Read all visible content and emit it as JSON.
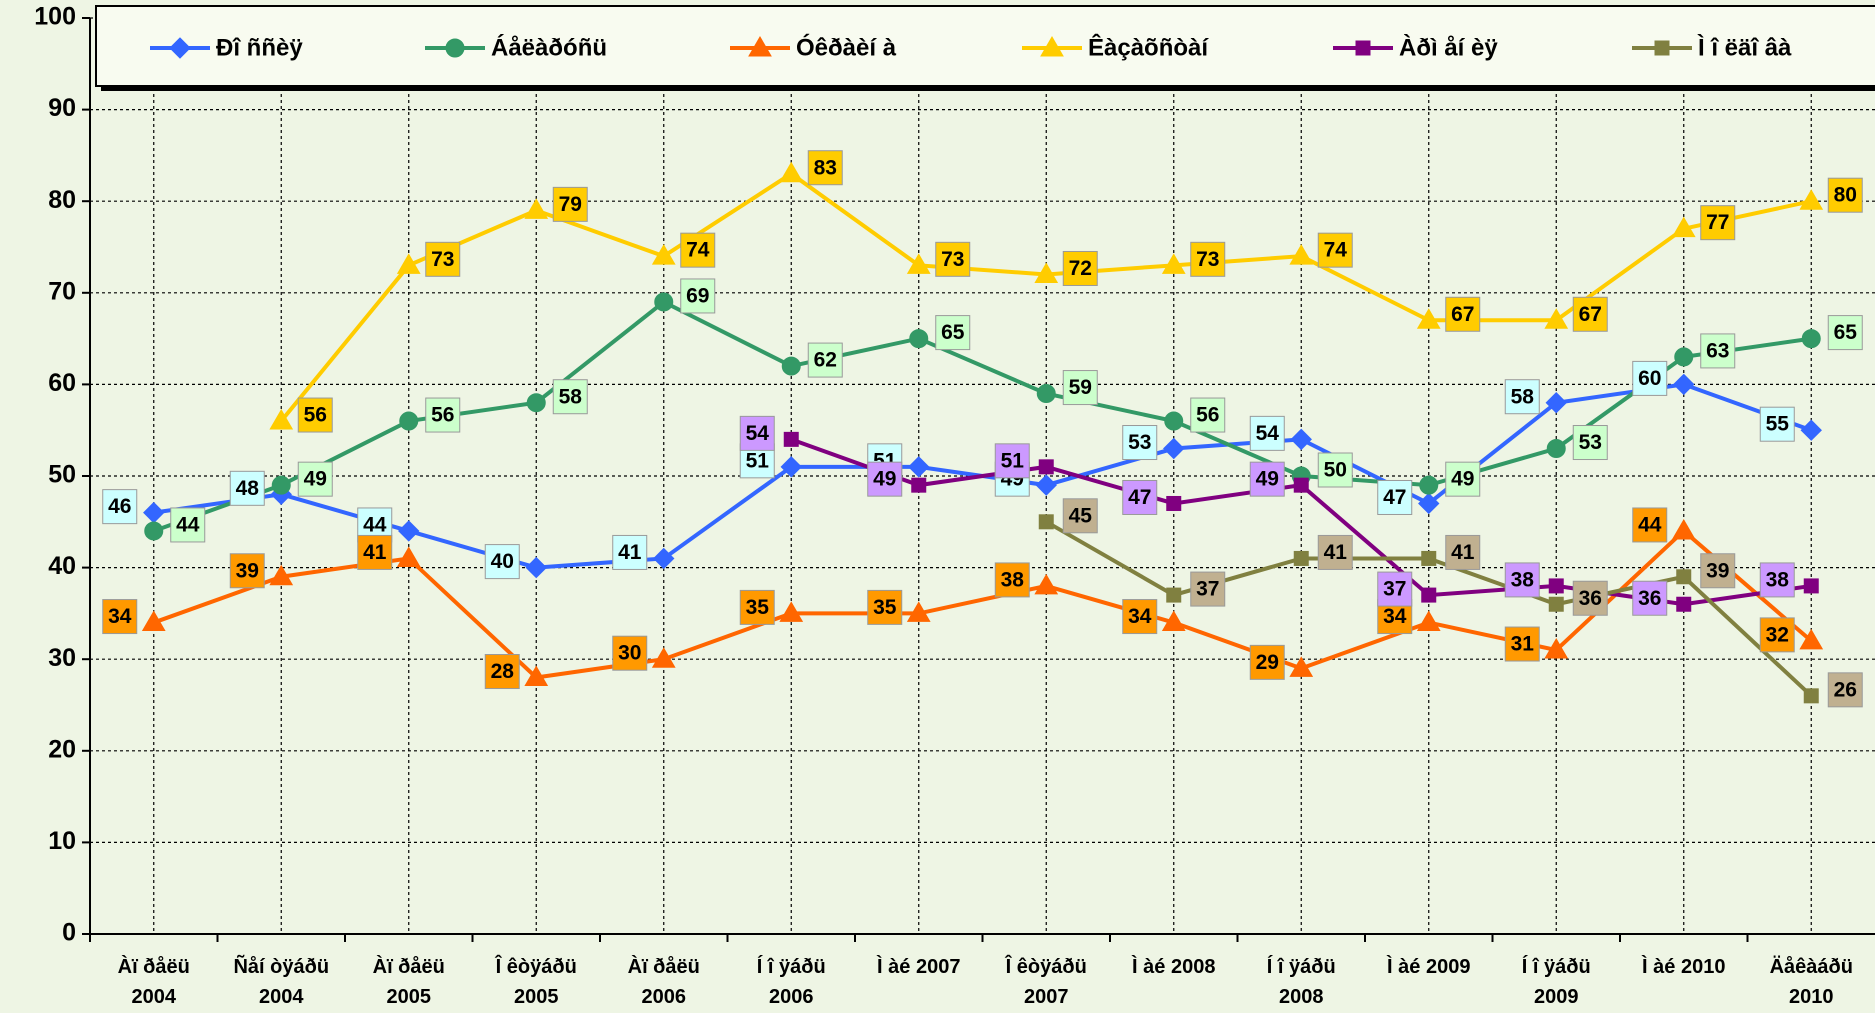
{
  "chart_data": {
    "type": "line",
    "categories": [
      [
        "Àï ðåëü",
        "2004"
      ],
      [
        "Ñåí òÿáðü",
        "2004"
      ],
      [
        "Àï ðåëü",
        "2005"
      ],
      [
        "Î êòÿáðü",
        "2005"
      ],
      [
        "Àï ðåëü",
        "2006"
      ],
      [
        "Í î ÿáðü",
        "2006"
      ],
      [
        "Ì àé 2007"
      ],
      [
        "Î êòÿáðü",
        "2007"
      ],
      [
        "Ì àé 2008"
      ],
      [
        "Í î ÿáðü",
        "2008"
      ],
      [
        "Ì àé 2009"
      ],
      [
        "Í î ÿáðü",
        "2009"
      ],
      [
        "Ì àé 2010"
      ],
      [
        "Äåêàáðü",
        "2010"
      ]
    ],
    "series": [
      {
        "name": "Ðî ññèÿ",
        "color": "#3366ff",
        "marker": "diamond",
        "label_color": "#ccffff",
        "values": [
          46,
          48,
          44,
          40,
          41,
          51,
          51,
          49,
          53,
          54,
          47,
          58,
          60,
          55
        ]
      },
      {
        "name": "Áåëàðóñü",
        "color": "#339966",
        "marker": "circle",
        "label_color": "#ccffcc",
        "values": [
          44,
          49,
          56,
          58,
          69,
          62,
          65,
          59,
          56,
          50,
          49,
          53,
          63,
          65
        ]
      },
      {
        "name": "Óêðàèí à",
        "color": "#ff6600",
        "marker": "triangle",
        "label_color": "#ff9900",
        "values": [
          34,
          39,
          41,
          28,
          30,
          35,
          35,
          38,
          34,
          29,
          34,
          31,
          44,
          32
        ]
      },
      {
        "name": "Êàçàõñòàí",
        "color": "#ffcc00",
        "marker": "triangle",
        "label_color": "#ffcc00",
        "values": [
          null,
          56,
          73,
          79,
          74,
          83,
          73,
          72,
          73,
          74,
          67,
          67,
          77,
          80
        ]
      },
      {
        "name": "Àðì åí èÿ",
        "color": "#800080",
        "marker": "square",
        "label_color": "#cc99ff",
        "values": [
          null,
          null,
          null,
          null,
          null,
          54,
          49,
          51,
          47,
          49,
          37,
          38,
          36,
          38
        ]
      },
      {
        "name": "Ì î ëäî âà",
        "color": "#808040",
        "marker": "square",
        "label_color": "#c0b090",
        "values": [
          null,
          null,
          null,
          null,
          null,
          null,
          null,
          45,
          37,
          41,
          41,
          36,
          39,
          26
        ]
      }
    ],
    "ylim": [
      0,
      100
    ],
    "yticks": [
      0,
      10,
      20,
      30,
      40,
      50,
      60,
      70,
      80,
      90,
      100
    ],
    "grid": true,
    "legend": "top"
  }
}
